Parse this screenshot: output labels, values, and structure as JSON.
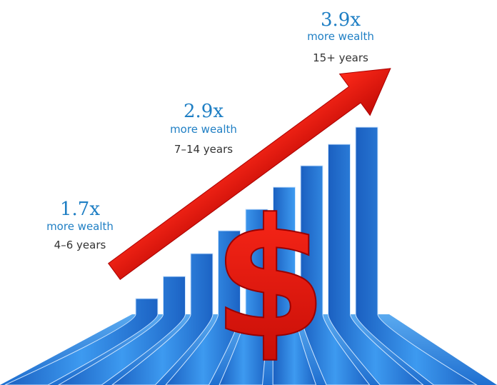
{
  "callouts": [
    {
      "multiplier": "1.7x",
      "label": "more wealth",
      "period": "4–6 years"
    },
    {
      "multiplier": "2.9x",
      "label": "more wealth",
      "period": "7–14 years"
    },
    {
      "multiplier": "3.9x",
      "label": "more wealth",
      "period": "15+ years"
    }
  ]
}
